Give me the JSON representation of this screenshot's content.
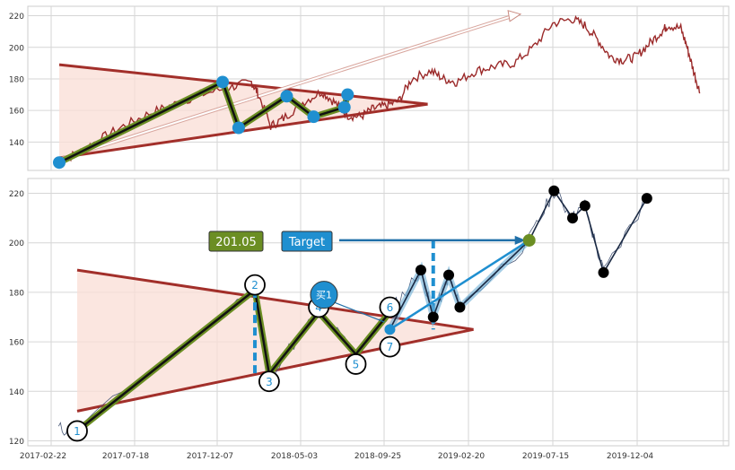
{
  "chart_data": [
    {
      "type": "line",
      "panel": "top",
      "ylim": [
        122,
        226
      ],
      "yticks": [
        140,
        160,
        180,
        200,
        220
      ],
      "grid": true,
      "series": [
        {
          "color": "#9b2a2a",
          "kind": "price",
          "points": [
            [
              0,
              128
            ],
            [
              0.03,
              133
            ],
            [
              0.06,
              141
            ],
            [
              0.1,
              150
            ],
            [
              0.14,
              158
            ],
            [
              0.18,
              164
            ],
            [
              0.22,
              170
            ],
            [
              0.27,
              175
            ],
            [
              0.3,
              178
            ],
            [
              0.31,
              171
            ],
            [
              0.33,
              150
            ],
            [
              0.35,
              155
            ],
            [
              0.38,
              165
            ],
            [
              0.41,
              172
            ],
            [
              0.43,
              165
            ],
            [
              0.45,
              157
            ],
            [
              0.47,
              156
            ],
            [
              0.49,
              161
            ],
            [
              0.51,
              163
            ],
            [
              0.53,
              166
            ],
            [
              0.55,
              180
            ],
            [
              0.58,
              185
            ],
            [
              0.6,
              180
            ],
            [
              0.62,
              178
            ],
            [
              0.65,
              185
            ],
            [
              0.68,
              188
            ],
            [
              0.71,
              190
            ],
            [
              0.74,
              200
            ],
            [
              0.77,
              215
            ],
            [
              0.8,
              218
            ],
            [
              0.82,
              214
            ],
            [
              0.84,
              205
            ],
            [
              0.86,
              194
            ],
            [
              0.88,
              192
            ],
            [
              0.9,
              194
            ],
            [
              0.92,
              202
            ],
            [
              0.94,
              210
            ],
            [
              0.95,
              214
            ],
            [
              0.97,
              212
            ],
            [
              0.98,
              200
            ],
            [
              0.99,
              185
            ],
            [
              1.0,
              171
            ]
          ]
        }
      ],
      "pattern_points": [
        [
          0.0,
          127
        ],
        [
          0.255,
          178
        ],
        [
          0.28,
          149
        ],
        [
          0.355,
          169
        ],
        [
          0.397,
          156
        ],
        [
          0.445,
          162
        ],
        [
          0.45,
          170
        ]
      ],
      "triangle_upper": [
        [
          0.0,
          189
        ],
        [
          0.575,
          164
        ]
      ],
      "triangle_lower": [
        [
          0.0,
          130
        ],
        [
          0.575,
          164
        ]
      ],
      "arrow": [
        [
          0.0,
          129
        ],
        [
          0.72,
          221
        ]
      ]
    },
    {
      "type": "line",
      "panel": "bottom",
      "ylim": [
        118,
        226
      ],
      "yticks": [
        120,
        140,
        160,
        180,
        200,
        220
      ],
      "xticks": [
        "2017-02-22",
        "2017-07-18",
        "2017-12-07",
        "2018-05-03",
        "2018-09-25",
        "2019-02-20",
        "2019-07-15",
        "2019-12-04"
      ],
      "grid": true,
      "annotations": [
        {
          "label": "201.05",
          "bg": "#6b8e23",
          "fg": "#ffffff"
        },
        {
          "label": "Target",
          "bg": "#1f8fd0",
          "fg": "#ffffff"
        },
        {
          "label": "买1",
          "bg": "#1f8fd0",
          "fg": "#ffffff"
        }
      ],
      "pivot_labels": [
        {
          "label": "1",
          "pos": [
            0.0,
            124
          ]
        },
        {
          "label": "2",
          "pos": [
            0.287,
            183
          ]
        },
        {
          "label": "3",
          "pos": [
            0.31,
            144
          ]
        },
        {
          "label": "4",
          "pos": [
            0.39,
            174
          ]
        },
        {
          "label": "5",
          "pos": [
            0.45,
            151
          ]
        },
        {
          "label": "6",
          "pos": [
            0.505,
            174
          ]
        },
        {
          "label": "7",
          "pos": [
            0.505,
            158
          ]
        }
      ],
      "pattern_points": [
        [
          0.0,
          124
        ],
        [
          0.287,
          181
        ],
        [
          0.31,
          147
        ],
        [
          0.39,
          172
        ],
        [
          0.45,
          155
        ],
        [
          0.505,
          172
        ]
      ],
      "triangle_upper": [
        [
          0.0,
          189
        ],
        [
          0.64,
          165
        ]
      ],
      "triangle_lower": [
        [
          0.0,
          132
        ],
        [
          0.64,
          165
        ]
      ],
      "forecast_points": [
        [
          0.505,
          165
        ],
        [
          0.555,
          189
        ],
        [
          0.575,
          170
        ],
        [
          0.6,
          187
        ],
        [
          0.618,
          174
        ],
        [
          0.73,
          201
        ],
        [
          0.77,
          221
        ],
        [
          0.8,
          210
        ],
        [
          0.82,
          215
        ],
        [
          0.85,
          188
        ],
        [
          0.92,
          218
        ]
      ],
      "target_value": 201.05,
      "target_x": 0.73
    }
  ]
}
